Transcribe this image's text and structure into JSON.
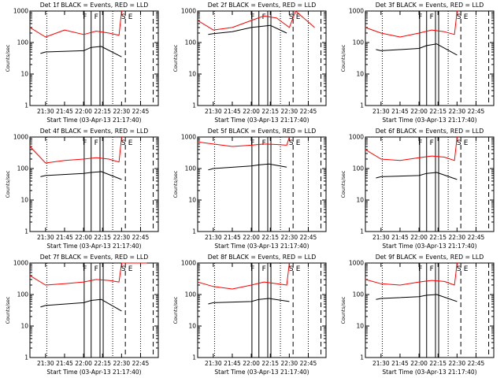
{
  "chart_data": [
    {
      "type": "line",
      "title": "Det 1f BLACK = Events, RED = LLD",
      "ylabel": "Counts/sec",
      "xlabel": "Start Time (03-Apr-13 21:17:40)",
      "x_ticks": [
        "21:30",
        "21:45",
        "22:00",
        "22:15",
        "22:30",
        "22:45"
      ],
      "y_ticks": [
        "1",
        "10",
        "100",
        "1000"
      ],
      "xlim": [
        "21:17:40",
        "22:59"
      ],
      "ylim": [
        1,
        1000
      ],
      "y_scale": "log",
      "marker_labels": [
        "F",
        "F",
        "S",
        "E"
      ],
      "events": {
        "x": [
          "21:26",
          "21:30",
          "22:00",
          "22:06",
          "22:14",
          "22:30"
        ],
        "y": [
          45,
          50,
          55,
          70,
          75,
          35
        ]
      },
      "lld": {
        "x": [
          "21:17:40",
          "21:30",
          "21:45",
          "22:00",
          "22:10",
          "22:20",
          "22:28",
          "22:30"
        ],
        "y": [
          300,
          150,
          250,
          180,
          230,
          200,
          170,
          1000
        ]
      },
      "series": [
        {
          "name": "Events",
          "color": "#000000"
        },
        {
          "name": "LLD",
          "color": "#ff0000"
        }
      ]
    },
    {
      "type": "line",
      "title": "Det 2f BLACK = Events, RED = LLD",
      "ylabel": "Counts/sec",
      "xlabel": "Start Time (03-Apr-13 21:17:40)",
      "x_ticks": [
        "21:30",
        "21:45",
        "22:00",
        "22:15",
        "22:30",
        "22:45"
      ],
      "y_ticks": [
        "1",
        "10",
        "100",
        "1000"
      ],
      "xlim": [
        "21:17:40",
        "22:59"
      ],
      "ylim": [
        1,
        1000
      ],
      "y_scale": "log",
      "marker_labels": [
        "F",
        "F",
        "S",
        "E"
      ],
      "events": {
        "x": [
          "21:26",
          "21:30",
          "21:45",
          "22:00",
          "22:15",
          "22:28"
        ],
        "y": [
          180,
          190,
          220,
          300,
          350,
          200
        ]
      },
      "lld": {
        "x": [
          "21:17:40",
          "21:30",
          "21:45",
          "22:00",
          "22:10",
          "22:20",
          "22:30",
          "22:35",
          "22:50"
        ],
        "y": [
          500,
          250,
          300,
          500,
          700,
          600,
          300,
          1000,
          300
        ]
      },
      "series": [
        {
          "name": "Events",
          "color": "#000000"
        },
        {
          "name": "LLD",
          "color": "#ff0000"
        }
      ]
    },
    {
      "type": "line",
      "title": "Det 3f BLACK = Events, RED = LLD",
      "ylabel": "Counts/sec",
      "xlabel": "Start Time (03-Apr-13 21:17:40)",
      "x_ticks": [
        "21:30",
        "21:45",
        "22:00",
        "22:15",
        "22:30",
        "22:45"
      ],
      "y_ticks": [
        "1",
        "10",
        "100",
        "1000"
      ],
      "xlim": [
        "21:17:40",
        "22:59"
      ],
      "ylim": [
        1,
        1000
      ],
      "y_scale": "log",
      "marker_labels": [
        "F",
        "F",
        "S",
        "E"
      ],
      "events": {
        "x": [
          "21:26",
          "21:30",
          "22:00",
          "22:06",
          "22:14",
          "22:30"
        ],
        "y": [
          60,
          55,
          65,
          80,
          90,
          40
        ]
      },
      "lld": {
        "x": [
          "21:17:40",
          "21:30",
          "21:45",
          "22:00",
          "22:10",
          "22:20",
          "22:28",
          "22:30"
        ],
        "y": [
          300,
          200,
          150,
          200,
          250,
          220,
          180,
          1000
        ]
      },
      "series": [
        {
          "name": "Events",
          "color": "#000000"
        },
        {
          "name": "LLD",
          "color": "#ff0000"
        }
      ]
    },
    {
      "type": "line",
      "title": "Det 4f BLACK = Events, RED = LLD",
      "ylabel": "Counts/sec",
      "xlabel": "Start Time (03-Apr-13 21:17:40)",
      "x_ticks": [
        "21:30",
        "21:45",
        "22:00",
        "22:15",
        "22:30",
        "22:45"
      ],
      "y_ticks": [
        "1",
        "10",
        "100",
        "1000"
      ],
      "xlim": [
        "21:17:40",
        "22:59"
      ],
      "ylim": [
        1,
        1000
      ],
      "y_scale": "log",
      "marker_labels": [
        "F",
        "F",
        "S",
        "E"
      ],
      "events": {
        "x": [
          "21:26",
          "21:30",
          "22:00",
          "22:06",
          "22:14",
          "22:30"
        ],
        "y": [
          55,
          60,
          70,
          75,
          80,
          45
        ]
      },
      "lld": {
        "x": [
          "21:17:40",
          "21:30",
          "21:45",
          "22:00",
          "22:10",
          "22:20",
          "22:28",
          "22:30"
        ],
        "y": [
          500,
          150,
          180,
          200,
          220,
          200,
          160,
          1000
        ]
      },
      "series": [
        {
          "name": "Events",
          "color": "#000000"
        },
        {
          "name": "LLD",
          "color": "#ff0000"
        }
      ]
    },
    {
      "type": "line",
      "title": "Det 5f BLACK = Events, RED = LLD",
      "ylabel": "Counts/sec",
      "xlabel": "Start Time (03-Apr-13 21:17:40)",
      "x_ticks": [
        "21:30",
        "21:45",
        "22:00",
        "22:15",
        "22:30",
        "22:45"
      ],
      "y_ticks": [
        "1",
        "10",
        "100",
        "1000"
      ],
      "xlim": [
        "21:17:40",
        "22:59"
      ],
      "ylim": [
        1,
        1000
      ],
      "y_scale": "log",
      "marker_labels": [
        "F",
        "F",
        "S",
        "E"
      ],
      "events": {
        "x": [
          "21:26",
          "21:30",
          "22:00",
          "22:06",
          "22:14",
          "22:28"
        ],
        "y": [
          90,
          100,
          120,
          130,
          140,
          110
        ]
      },
      "lld": {
        "x": [
          "21:17:40",
          "21:30",
          "21:45",
          "22:00",
          "22:10",
          "22:20",
          "22:28",
          "22:30"
        ],
        "y": [
          700,
          600,
          500,
          550,
          600,
          580,
          550,
          1000
        ]
      },
      "series": [
        {
          "name": "Events",
          "color": "#000000"
        },
        {
          "name": "LLD",
          "color": "#ff0000"
        }
      ]
    },
    {
      "type": "line",
      "title": "Det 6f BLACK = Events, RED = LLD",
      "ylabel": "Counts/sec",
      "xlabel": "Start Time (03-Apr-13 21:17:40)",
      "x_ticks": [
        "21:30",
        "21:45",
        "22:00",
        "22:15",
        "22:30",
        "22:45"
      ],
      "y_ticks": [
        "1",
        "10",
        "100",
        "1000"
      ],
      "xlim": [
        "21:17:40",
        "22:59"
      ],
      "ylim": [
        1,
        1000
      ],
      "y_scale": "log",
      "marker_labels": [
        "F",
        "F",
        "S",
        "E"
      ],
      "events": {
        "x": [
          "21:26",
          "21:30",
          "22:00",
          "22:06",
          "22:14",
          "22:30"
        ],
        "y": [
          50,
          55,
          60,
          70,
          75,
          45
        ]
      },
      "lld": {
        "x": [
          "21:17:40",
          "21:30",
          "21:45",
          "22:00",
          "22:10",
          "22:20",
          "22:28",
          "22:30"
        ],
        "y": [
          400,
          200,
          180,
          220,
          250,
          230,
          180,
          1000
        ]
      },
      "series": [
        {
          "name": "Events",
          "color": "#000000"
        },
        {
          "name": "LLD",
          "color": "#ff0000"
        }
      ]
    },
    {
      "type": "line",
      "title": "Det 7f BLACK = Events, RED = LLD",
      "ylabel": "Counts/sec",
      "xlabel": "Start Time (03-Apr-13 21:17:40)",
      "x_ticks": [
        "21:30",
        "21:45",
        "22:00",
        "22:15",
        "22:30",
        "22:45"
      ],
      "y_ticks": [
        "1",
        "10",
        "100",
        "1000"
      ],
      "xlim": [
        "21:17:40",
        "22:59"
      ],
      "ylim": [
        1,
        1000
      ],
      "y_scale": "log",
      "marker_labels": [
        "F",
        "F",
        "S",
        "E"
      ],
      "events": {
        "x": [
          "21:26",
          "21:30",
          "22:00",
          "22:06",
          "22:14",
          "22:30"
        ],
        "y": [
          40,
          45,
          55,
          65,
          70,
          30
        ]
      },
      "lld": {
        "x": [
          "21:17:40",
          "21:30",
          "21:45",
          "22:00",
          "22:10",
          "22:20",
          "22:28",
          "22:30",
          "22:50"
        ],
        "y": [
          400,
          200,
          220,
          250,
          300,
          280,
          250,
          1000,
          1000
        ]
      },
      "series": [
        {
          "name": "Events",
          "color": "#000000"
        },
        {
          "name": "LLD",
          "color": "#ff0000"
        }
      ]
    },
    {
      "type": "line",
      "title": "Det 8f BLACK = Events, RED = LLD",
      "ylabel": "Counts/sec",
      "xlabel": "Start Time (03-Apr-13 21:17:40)",
      "x_ticks": [
        "21:30",
        "21:45",
        "22:00",
        "22:15",
        "22:30",
        "22:45"
      ],
      "y_ticks": [
        "1",
        "10",
        "100",
        "1000"
      ],
      "xlim": [
        "21:17:40",
        "22:59"
      ],
      "ylim": [
        1,
        1000
      ],
      "y_scale": "log",
      "marker_labels": [
        "F",
        "F",
        "S",
        "E"
      ],
      "events": {
        "x": [
          "21:26",
          "21:30",
          "22:00",
          "22:06",
          "22:14",
          "22:30"
        ],
        "y": [
          50,
          55,
          60,
          70,
          75,
          60
        ]
      },
      "lld": {
        "x": [
          "21:17:40",
          "21:30",
          "21:45",
          "22:00",
          "22:10",
          "22:20",
          "22:28",
          "22:30"
        ],
        "y": [
          250,
          180,
          150,
          200,
          250,
          220,
          200,
          1000
        ]
      },
      "series": [
        {
          "name": "Events",
          "color": "#000000"
        },
        {
          "name": "LLD",
          "color": "#ff0000"
        }
      ]
    },
    {
      "type": "line",
      "title": "Det 9f BLACK = Events, RED = LLD",
      "ylabel": "Counts/sec",
      "xlabel": "Start Time (03-Apr-13 21:17:40)",
      "x_ticks": [
        "21:30",
        "21:45",
        "22:00",
        "22:15",
        "22:30",
        "22:45"
      ],
      "y_ticks": [
        "1",
        "10",
        "100",
        "1000"
      ],
      "xlim": [
        "21:17:40",
        "22:59"
      ],
      "ylim": [
        1,
        1000
      ],
      "y_scale": "log",
      "marker_labels": [
        "F",
        "F",
        "S",
        "E"
      ],
      "events": {
        "x": [
          "21:26",
          "21:30",
          "22:00",
          "22:06",
          "22:14",
          "22:30"
        ],
        "y": [
          70,
          75,
          85,
          95,
          100,
          60
        ]
      },
      "lld": {
        "x": [
          "21:17:40",
          "21:30",
          "21:45",
          "22:00",
          "22:10",
          "22:20",
          "22:28",
          "22:30"
        ],
        "y": [
          300,
          220,
          200,
          250,
          280,
          260,
          200,
          1000
        ]
      },
      "series": [
        {
          "name": "Events",
          "color": "#000000"
        },
        {
          "name": "LLD",
          "color": "#ff0000"
        }
      ]
    }
  ]
}
